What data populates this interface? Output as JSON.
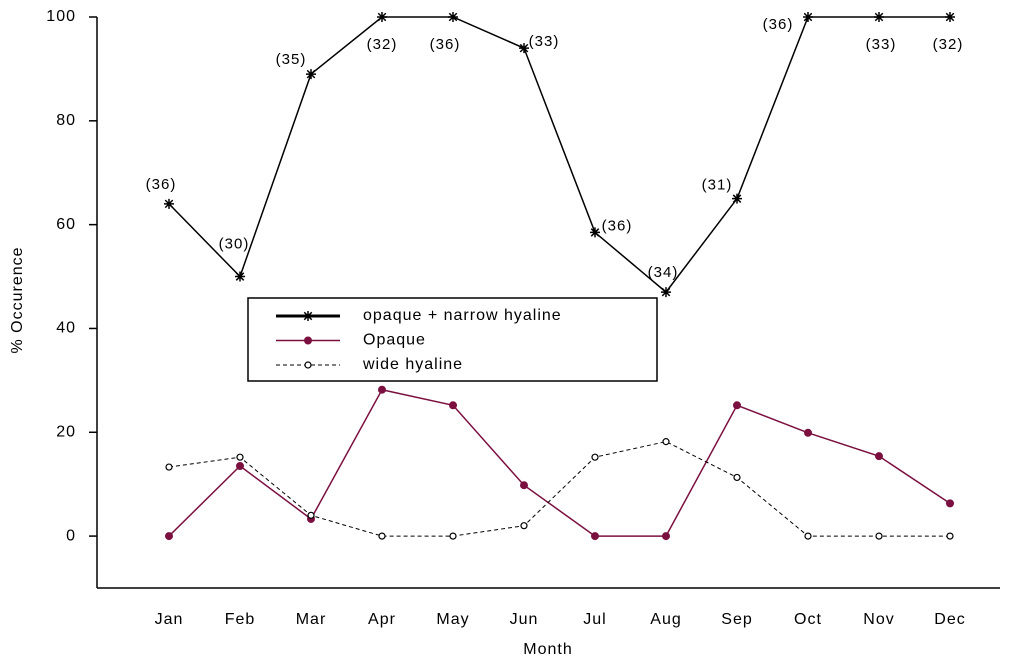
{
  "chart_data": {
    "type": "line",
    "xlabel": "Month",
    "ylabel": "% Occurence",
    "categories": [
      "Jan",
      "Feb",
      "Mar",
      "Apr",
      "May",
      "Jun",
      "Jul",
      "Aug",
      "Sep",
      "Oct",
      "Nov",
      "Dec"
    ],
    "ylim": [
      -10,
      100
    ],
    "yticks": [
      0,
      20,
      40,
      60,
      80,
      100
    ],
    "series": [
      {
        "name": "opaque + narrow hyaline",
        "color": "#000000",
        "marker": "asterisk",
        "dashed": false,
        "values": [
          64,
          50,
          89,
          100,
          100,
          94,
          58.5,
          47,
          65,
          100,
          100,
          100
        ],
        "annotations": [
          "(36)",
          "(30)",
          "(35)",
          "(32)",
          "(36)",
          "(33)",
          "(36)",
          "(34)",
          "(31)",
          "(36)",
          "(33)",
          "(32)"
        ]
      },
      {
        "name": "Opaque",
        "color": "#7b1040",
        "marker": "filled-circle",
        "dashed": false,
        "values": [
          0,
          13.5,
          3.3,
          28.2,
          25.2,
          9.8,
          0,
          0,
          25.2,
          19.9,
          15.4,
          6.3
        ]
      },
      {
        "name": "wide hyaline",
        "color": "#000000",
        "marker": "open-circle",
        "dashed": true,
        "values": [
          13.3,
          15.2,
          4,
          0,
          0,
          2,
          15.2,
          18.2,
          11.3,
          0,
          0,
          0
        ]
      }
    ]
  }
}
